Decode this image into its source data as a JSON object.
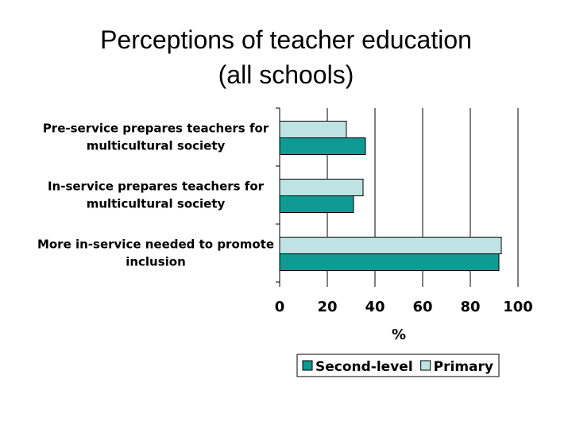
{
  "slide": {
    "title_line1": "Perceptions of teacher education",
    "title_line2": "(all schools)"
  },
  "chart_data": {
    "type": "bar",
    "orientation": "horizontal",
    "categories": [
      [
        "Pre-service prepares teachers for",
        "multicultural society"
      ],
      [
        "In-service prepares teachers for",
        "multicultural society"
      ],
      [
        "More in-service needed to promote",
        "inclusion"
      ]
    ],
    "series": [
      {
        "name": "Primary",
        "color": "#bfe3e3",
        "values": [
          28,
          35,
          93
        ]
      },
      {
        "name": "Second-level",
        "color": "#0f9a94",
        "values": [
          36,
          31,
          92
        ]
      }
    ],
    "legend_order": [
      "Second-level",
      "Primary"
    ],
    "xlabel": "%",
    "xlim": [
      0,
      100
    ],
    "xticks": [
      "0",
      "20",
      "40",
      "60",
      "80",
      "100"
    ],
    "grid": "vertical",
    "legend_position": "bottom"
  }
}
